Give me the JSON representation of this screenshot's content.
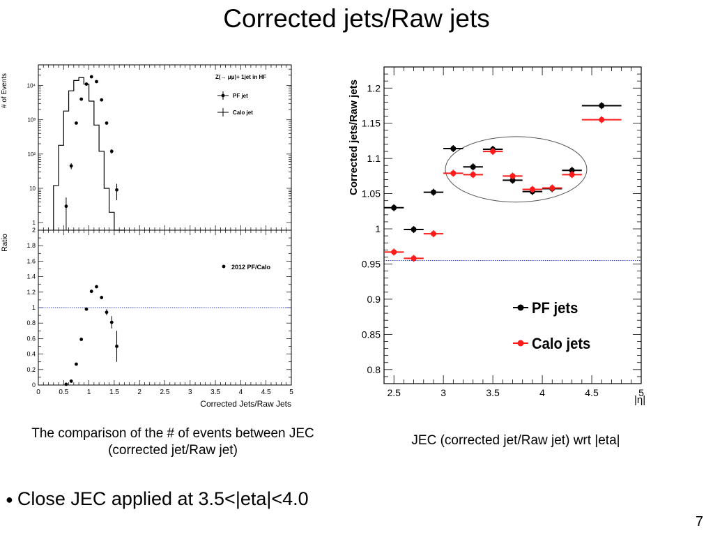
{
  "slide": {
    "title": "Corrected jets/Raw jets",
    "caption_left": "The comparison of the # of events between JEC (corrected jet/Raw jet)",
    "caption_right": "JEC (corrected jet/Raw jet) wrt |eta|",
    "bullet": "Close JEC applied at 3.5<|eta|<4.0",
    "page_number": "7"
  },
  "chart_data": [
    {
      "type": "line",
      "panel": "left-top",
      "ylabel": "# of Events",
      "yscale": "log",
      "ylim": [
        0.6,
        40000
      ],
      "xlim": [
        0,
        5
      ],
      "yticks": [
        {
          "v": 1,
          "label": "1"
        },
        {
          "v": 10,
          "label": "10"
        },
        {
          "v": 100,
          "label": "10²"
        },
        {
          "v": 1000,
          "label": "10³"
        },
        {
          "v": 10000,
          "label": "10⁴"
        }
      ],
      "legend": {
        "title": "Z(→ μμ)+ 1jet in HF",
        "entries": [
          "PF jet",
          "Calo jet"
        ],
        "placement": "top-right"
      },
      "series": [
        {
          "name": "Calo jet",
          "style": "step",
          "bin_edges": [
            0.3,
            0.4,
            0.5,
            0.6,
            0.7,
            0.8,
            0.9,
            1.0,
            1.1,
            1.2,
            1.3,
            1.4,
            1.5,
            1.6,
            1.7
          ],
          "values": [
            12,
            180,
            1800,
            7000,
            14000,
            17000,
            11000,
            3500,
            700,
            120,
            10,
            2,
            0.5,
            0.5
          ]
        },
        {
          "name": "PF jet",
          "style": "points",
          "x": [
            0.55,
            0.65,
            0.75,
            0.85,
            0.95,
            1.05,
            1.15,
            1.25,
            1.35,
            1.45,
            1.55
          ],
          "y": [
            3,
            45,
            800,
            4000,
            11000,
            18000,
            13000,
            3800,
            800,
            120,
            9
          ],
          "yerr_rel": [
            0.8,
            0.2,
            0.05,
            0.03,
            0.02,
            0.02,
            0.02,
            0.03,
            0.05,
            0.15,
            0.5
          ]
        }
      ]
    },
    {
      "type": "scatter",
      "panel": "left-bottom",
      "ylabel": "Ratio",
      "xlabel": "Corrected Jets/Raw Jets",
      "xlim": [
        0,
        5
      ],
      "ylim": [
        0,
        2
      ],
      "xticks": [
        "0",
        "0.5",
        "1",
        "1.5",
        "2",
        "2.5",
        "3",
        "3.5",
        "4",
        "4.5",
        "5"
      ],
      "yticks": [
        "0",
        "0.2",
        "0.4",
        "0.6",
        "0.8",
        "1",
        "1.2",
        "1.4",
        "1.6",
        "1.8",
        "2"
      ],
      "reference_line": 1,
      "legend": {
        "entries": [
          "2012 PF/Calo"
        ],
        "placement": "top-right"
      },
      "series": [
        {
          "name": "2012 PF/Calo",
          "x": [
            0.55,
            0.65,
            0.75,
            0.85,
            0.95,
            1.05,
            1.15,
            1.25,
            1.35,
            1.45,
            1.55
          ],
          "y": [
            0.01,
            0.05,
            0.27,
            0.59,
            0.98,
            1.21,
            1.27,
            1.13,
            0.94,
            0.81,
            0.5
          ],
          "yerr": [
            0.01,
            0.01,
            0.01,
            0.01,
            0.01,
            0.01,
            0.01,
            0.02,
            0.04,
            0.08,
            0.2
          ]
        }
      ]
    },
    {
      "type": "scatter",
      "panel": "right",
      "ylabel": "Corrected jets/Raw jets",
      "xlabel": "|η|",
      "xlim": [
        2.4,
        5
      ],
      "ylim": [
        0.78,
        1.23
      ],
      "xticks": [
        "2.5",
        "3",
        "3.5",
        "4",
        "4.5",
        "5"
      ],
      "yticks": [
        "0.8",
        "0.85",
        "0.9",
        "0.95",
        "1",
        "1.05",
        "1.1",
        "1.15",
        "1.2"
      ],
      "reference_line": 0.955,
      "highlight_region": {
        "shape": "ellipse",
        "x_range": [
          3.02,
          4.45
        ],
        "y_range": [
          1.038,
          1.131
        ]
      },
      "legend": {
        "entries": [
          "PF jets",
          "Calo jets"
        ],
        "placement": "bottom-right"
      },
      "series": [
        {
          "name": "PF jets",
          "color": "#000000",
          "x": [
            2.5,
            2.7,
            2.9,
            3.1,
            3.3,
            3.5,
            3.7,
            3.9,
            4.1,
            4.3,
            4.6
          ],
          "xerr": [
            0.1,
            0.1,
            0.1,
            0.1,
            0.1,
            0.1,
            0.1,
            0.1,
            0.1,
            0.1,
            0.2
          ],
          "y": [
            1.03,
            0.999,
            1.052,
            1.114,
            1.088,
            1.113,
            1.069,
            1.053,
            1.057,
            1.083,
            1.175
          ]
        },
        {
          "name": "Calo jets",
          "color": "#ff1a1a",
          "x": [
            2.5,
            2.7,
            2.9,
            3.1,
            3.3,
            3.5,
            3.7,
            3.9,
            4.1,
            4.3,
            4.6
          ],
          "xerr": [
            0.1,
            0.1,
            0.1,
            0.1,
            0.1,
            0.1,
            0.1,
            0.1,
            0.1,
            0.1,
            0.2
          ],
          "y": [
            0.967,
            0.958,
            0.993,
            1.079,
            1.077,
            1.11,
            1.075,
            1.056,
            1.058,
            1.077,
            1.155
          ]
        }
      ]
    }
  ]
}
